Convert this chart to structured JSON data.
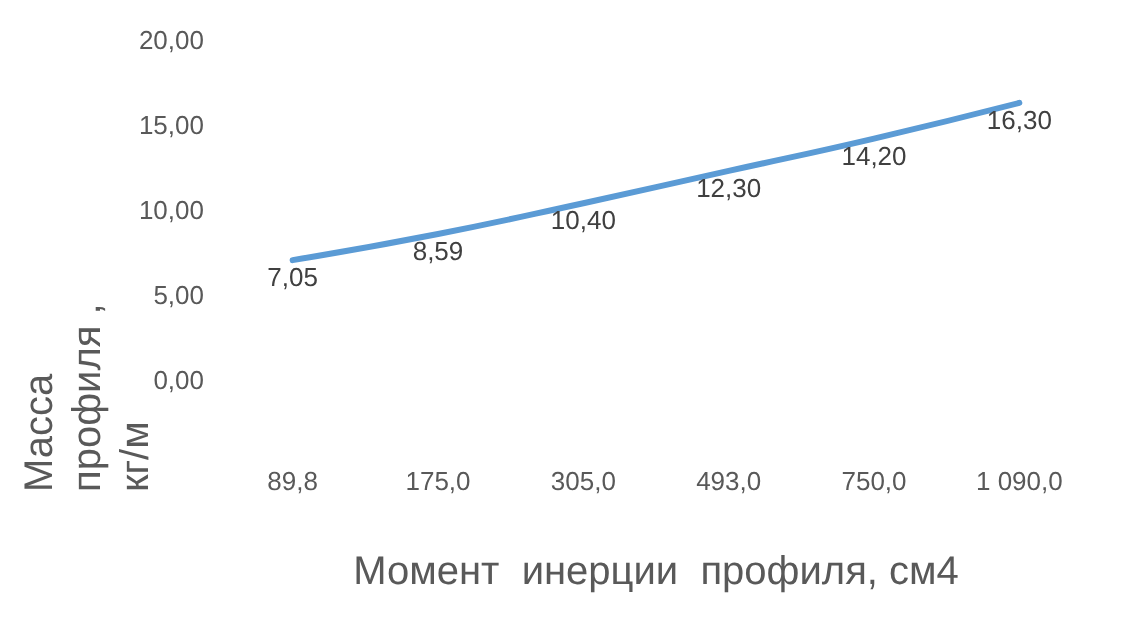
{
  "chart_data": {
    "type": "line",
    "xlabel": "Момент  инерции  профиля, см4",
    "ylabel": "Масса  профиля , кг/м",
    "categories": [
      "89,8",
      "175,0",
      "305,0",
      "493,0",
      "750,0",
      "1 090,0"
    ],
    "series": [
      {
        "color": "#5b9bd5",
        "values": [
          7.05,
          8.59,
          10.4,
          12.3,
          14.2,
          16.3
        ],
        "value_labels": [
          "7,05",
          "8,59",
          "10,40",
          "12,30",
          "14,20",
          "16,30"
        ]
      }
    ],
    "ylim": [
      0,
      20
    ],
    "yticks": [
      {
        "value": 0,
        "label": "0,00"
      },
      {
        "value": 5,
        "label": "5,00"
      },
      {
        "value": 10,
        "label": "10,00"
      },
      {
        "value": 15,
        "label": "15,00"
      },
      {
        "value": 20,
        "label": "20,00"
      }
    ],
    "grid": false,
    "marker": "none",
    "line_style": "solid"
  }
}
